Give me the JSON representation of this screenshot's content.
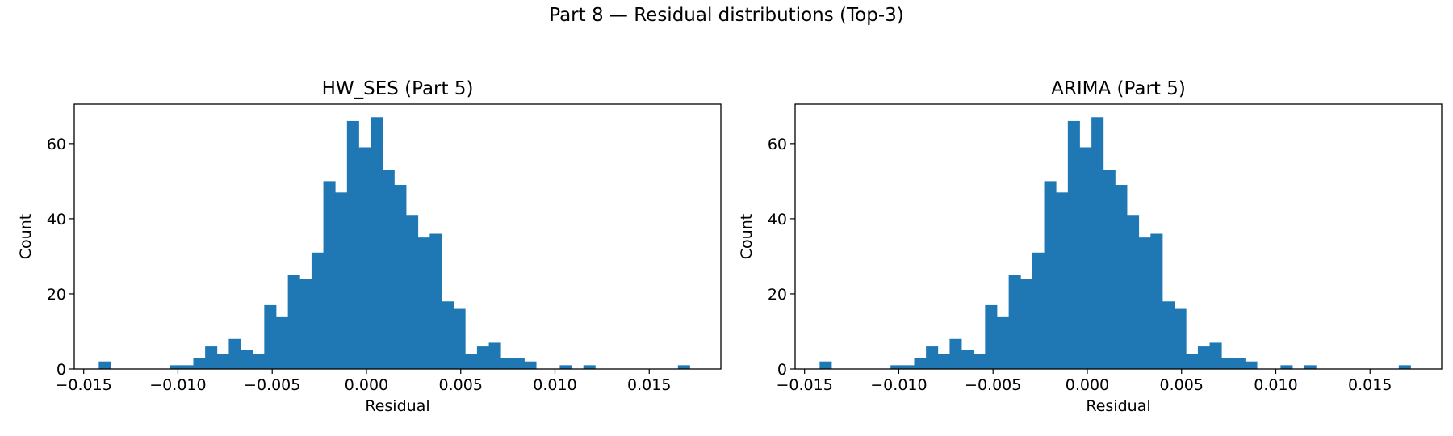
{
  "figure": {
    "suptitle": "Part 8 — Residual distributions (Top-3)"
  },
  "chart_data": [
    {
      "type": "bar",
      "title": "HW_SES (Part 5)",
      "xlabel": "Residual",
      "ylabel": "Count",
      "xlim": [
        -0.0155,
        0.0188
      ],
      "ylim": [
        0,
        70.5
      ],
      "xticks": [
        -0.015,
        -0.01,
        -0.005,
        0.0,
        0.005,
        0.01,
        0.015
      ],
      "xtick_labels": [
        "−0.015",
        "−0.010",
        "−0.005",
        "0.000",
        "0.005",
        "0.010",
        "0.015"
      ],
      "yticks": [
        0,
        20,
        40,
        60
      ],
      "ytick_labels": [
        "0",
        "20",
        "40",
        "60"
      ],
      "bar_color": "#1f77b4",
      "bins": {
        "start": -0.0142,
        "width": 0.000627,
        "count": 50
      },
      "values": [
        2,
        0,
        0,
        0,
        0,
        0,
        1,
        1,
        3,
        6,
        4,
        8,
        5,
        4,
        17,
        14,
        25,
        24,
        31,
        50,
        47,
        66,
        59,
        67,
        53,
        49,
        41,
        35,
        36,
        18,
        16,
        4,
        6,
        7,
        3,
        3,
        2,
        0,
        0,
        1,
        0,
        1,
        0,
        0,
        0,
        0,
        0,
        0,
        0,
        1
      ]
    },
    {
      "type": "bar",
      "title": "ARIMA (Part 5)",
      "xlabel": "Residual",
      "ylabel": "Count",
      "xlim": [
        -0.0155,
        0.0188
      ],
      "ylim": [
        0,
        70.5
      ],
      "xticks": [
        -0.015,
        -0.01,
        -0.005,
        0.0,
        0.005,
        0.01,
        0.015
      ],
      "xtick_labels": [
        "−0.015",
        "−0.010",
        "−0.005",
        "0.000",
        "0.005",
        "0.010",
        "0.015"
      ],
      "yticks": [
        0,
        20,
        40,
        60
      ],
      "ytick_labels": [
        "0",
        "20",
        "40",
        "60"
      ],
      "bar_color": "#1f77b4",
      "bins": {
        "start": -0.0142,
        "width": 0.000627,
        "count": 50
      },
      "values": [
        2,
        0,
        0,
        0,
        0,
        0,
        1,
        1,
        3,
        6,
        4,
        8,
        5,
        4,
        17,
        14,
        25,
        24,
        31,
        50,
        47,
        66,
        59,
        67,
        53,
        49,
        41,
        35,
        36,
        18,
        16,
        4,
        6,
        7,
        3,
        3,
        2,
        0,
        0,
        1,
        0,
        1,
        0,
        0,
        0,
        0,
        0,
        0,
        0,
        1
      ]
    }
  ]
}
